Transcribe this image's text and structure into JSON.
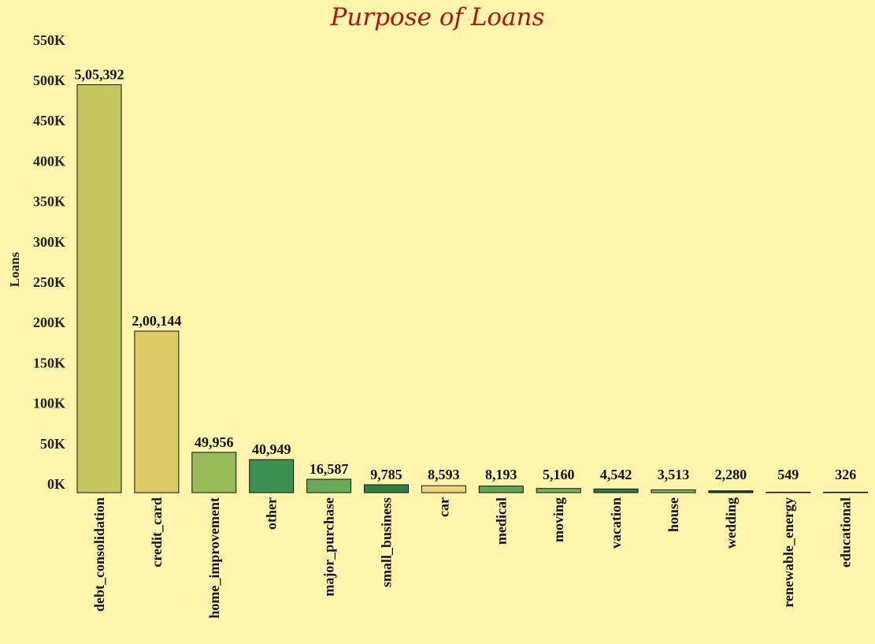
{
  "chart_data": {
    "type": "bar",
    "title": "Purpose of Loans",
    "xlabel": "",
    "ylabel": "Loans",
    "ylim": [
      0,
      550000
    ],
    "y_ticks": [
      {
        "value": 0,
        "label": "0K"
      },
      {
        "value": 50000,
        "label": "50K"
      },
      {
        "value": 100000,
        "label": "100K"
      },
      {
        "value": 150000,
        "label": "150K"
      },
      {
        "value": 200000,
        "label": "200K"
      },
      {
        "value": 250000,
        "label": "250K"
      },
      {
        "value": 300000,
        "label": "300K"
      },
      {
        "value": 350000,
        "label": "350K"
      },
      {
        "value": 400000,
        "label": "400K"
      },
      {
        "value": 450000,
        "label": "450K"
      },
      {
        "value": 500000,
        "label": "500K"
      },
      {
        "value": 550000,
        "label": "550K"
      }
    ],
    "grid": false,
    "categories": [
      "debt_consolidation",
      "credit_card",
      "home_improvement",
      "other",
      "major_purchase",
      "small_business",
      "car",
      "medical",
      "moving",
      "vacation",
      "house",
      "wedding",
      "renewable_energy",
      "educational"
    ],
    "values": [
      505392,
      200144,
      49956,
      40949,
      16587,
      9785,
      8593,
      8193,
      5160,
      4542,
      3513,
      2280,
      549,
      326
    ],
    "value_labels": [
      "5,05,392",
      "2,00,144",
      "49,956",
      "40,949",
      "16,587",
      "9,785",
      "8,593",
      "8,193",
      "5,160",
      "4,542",
      "3,513",
      "2,280",
      "549",
      "326"
    ],
    "colors": [
      "#c5c762",
      "#dccb66",
      "#96bb58",
      "#3d9150",
      "#69aa58",
      "#2f7d43",
      "#f2d47b",
      "#5fa657",
      "#75b45e",
      "#2f7d43",
      "#86bb5f",
      "#0f5c34",
      "#c7c65c",
      "#f0ce74"
    ],
    "background": "#fff5ad",
    "title_color": "#b3140f"
  }
}
